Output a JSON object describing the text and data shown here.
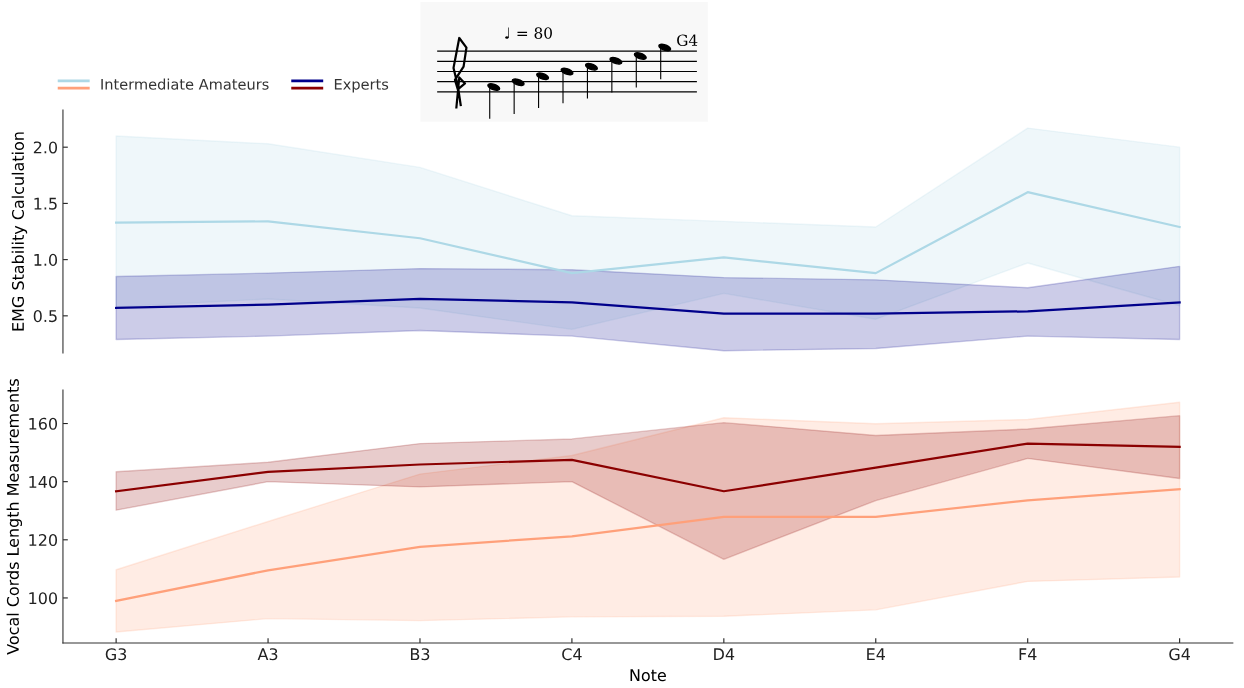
{
  "chart_data": [
    {
      "type": "line",
      "ylabel": "EMG Stability Calculation",
      "categories": [
        null,
        null,
        null,
        null,
        null,
        null,
        null,
        null
      ],
      "tick_labels": "y",
      "ylim": [
        0.17,
        2.33
      ],
      "yticks": [
        0.5,
        {
          "value": 1,
          "label": "1.0"
        },
        1.5,
        {
          "value": 2,
          "label": "2.0"
        }
      ],
      "legend": "top left",
      "annotations": [
        "♩ = 80",
        "G4"
      ],
      "series": [
        {
          "name": "Intermediate Amateurs",
          "color": "#add8e6",
          "values": [
            1.33,
            1.34,
            1.19,
            0.88,
            1.02,
            0.88,
            1.6,
            1.29
          ],
          "lower": [
            0.58,
            0.65,
            0.57,
            0.38,
            0.7,
            0.47,
            0.97,
            0.59
          ],
          "upper": [
            2.1,
            2.03,
            1.82,
            1.39,
            1.34,
            1.29,
            2.17,
            2.0
          ]
        },
        {
          "name": "Experts",
          "color": "#00008b",
          "values": [
            0.57,
            0.6,
            0.65,
            0.62,
            0.52,
            0.52,
            0.54,
            0.62
          ],
          "lower": [
            0.29,
            0.32,
            0.37,
            0.32,
            0.19,
            0.21,
            0.32,
            0.29
          ],
          "upper": [
            0.85,
            0.88,
            0.92,
            0.91,
            0.84,
            0.82,
            0.75,
            0.94
          ]
        }
      ]
    },
    {
      "type": "line",
      "xlabel": "Note",
      "ylabel": "Vocal Cords Length Measurements",
      "categories": [
        "G3",
        "A3",
        "B3",
        "C4",
        "D4",
        "E4",
        "F4",
        "G4"
      ],
      "ylim": [
        84.5,
        171.5
      ],
      "yticks": [
        100,
        120,
        140,
        160
      ],
      "series": [
        {
          "color": "#ffa07a",
          "values": [
            99.0,
            109.5,
            117.6,
            121.2,
            127.9,
            127.9,
            133.6,
            137.4
          ],
          "lower": [
            88.3,
            92.9,
            92.2,
            93.5,
            93.7,
            95.9,
            105.7,
            107.2
          ],
          "upper": [
            109.7,
            126.3,
            142.6,
            149.0,
            162.0,
            159.9,
            161.4,
            167.3
          ]
        },
        {
          "color": "#8b0000",
          "values": [
            136.7,
            143.4,
            145.9,
            147.5,
            136.7,
            144.8,
            153.1,
            152.0
          ],
          "lower": [
            130.2,
            140.0,
            138.2,
            140.0,
            113.3,
            133.5,
            148.0,
            141.1
          ],
          "upper": [
            143.4,
            146.7,
            153.1,
            154.7,
            160.3,
            155.9,
            158.1,
            162.7
          ]
        }
      ]
    }
  ]
}
